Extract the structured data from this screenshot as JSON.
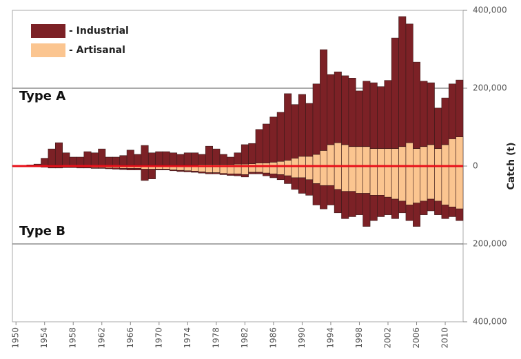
{
  "chart_data": {
    "type": "diverging_stacked_bar",
    "y_axis_label": "Catch (t)",
    "annotations": [
      "Type A",
      "Type B"
    ],
    "x": [
      1950,
      1951,
      1952,
      1953,
      1954,
      1955,
      1956,
      1957,
      1958,
      1959,
      1960,
      1961,
      1962,
      1963,
      1964,
      1965,
      1966,
      1967,
      1968,
      1969,
      1970,
      1971,
      1972,
      1973,
      1974,
      1975,
      1976,
      1977,
      1978,
      1979,
      1980,
      1981,
      1982,
      1983,
      1984,
      1985,
      1986,
      1987,
      1988,
      1989,
      1990,
      1991,
      1992,
      1993,
      1994,
      1995,
      1996,
      1997,
      1998,
      1999,
      2000,
      2001,
      2002,
      2003,
      2004,
      2005,
      2006,
      2007,
      2008,
      2009,
      2010,
      2011,
      2012
    ],
    "xlim": [
      1949.5,
      2012.5
    ],
    "xticks": [
      1950,
      1954,
      1958,
      1962,
      1966,
      1970,
      1974,
      1978,
      1982,
      1986,
      1990,
      1994,
      1998,
      2002,
      2006,
      2010
    ],
    "ylim": [
      -400000,
      400000
    ],
    "yticks": [
      {
        "value": 400000,
        "label": "400,000"
      },
      {
        "value": 200000,
        "label": "200,000"
      },
      0,
      {
        "value": -200000,
        "label": "200,000"
      },
      {
        "value": -400000,
        "label": "400,000"
      }
    ],
    "grid": true,
    "zero_line_color": "#e8101a",
    "negative_tick_color": "#e8101a",
    "legend_position": "top-left",
    "series": [
      {
        "name": "- Industrial",
        "color": "#7c2126",
        "values": [
          2000,
          2000,
          3000,
          4000,
          18000,
          41000,
          57000,
          32000,
          21000,
          21000,
          35000,
          32000,
          42000,
          21000,
          21000,
          24000,
          38000,
          27000,
          50000,
          31000,
          34000,
          34000,
          31000,
          27000,
          31000,
          31000,
          26000,
          47000,
          40000,
          26000,
          19000,
          29000,
          50000,
          52000,
          86000,
          100000,
          116000,
          126000,
          171000,
          138000,
          159000,
          136000,
          181000,
          259000,
          180000,
          182000,
          177000,
          176000,
          143000,
          168000,
          169000,
          159000,
          175000,
          284000,
          334000,
          305000,
          222000,
          168000,
          159000,
          104000,
          120000,
          141000,
          146000
        ],
        "values_type_b": [
          0,
          0,
          0,
          -1000,
          -1000,
          -2000,
          -2000,
          -1000,
          -1000,
          -2000,
          -2000,
          -2000,
          -2000,
          -2000,
          -3000,
          -3000,
          -4000,
          -4000,
          -29000,
          -25000,
          -2000,
          -2000,
          -2000,
          -3000,
          -3000,
          -3000,
          -3000,
          -3000,
          -3000,
          -3000,
          -4000,
          -5000,
          -6000,
          -4000,
          -4000,
          -7000,
          -10000,
          -13000,
          -20000,
          -30000,
          -40000,
          -40000,
          -55000,
          -60000,
          -50000,
          -60000,
          -70000,
          -65000,
          -55000,
          -85000,
          -65000,
          -55000,
          -45000,
          -50000,
          -30000,
          -40000,
          -60000,
          -35000,
          -30000,
          -35000,
          -35000,
          -25000,
          -30000
        ]
      },
      {
        "name": "- Artisanal",
        "color": "#fbc590",
        "values": [
          0,
          0,
          0,
          1000,
          2000,
          3000,
          3000,
          2000,
          2000,
          2000,
          2000,
          2000,
          2000,
          2000,
          2000,
          3000,
          3000,
          3000,
          3000,
          3000,
          3000,
          3000,
          3000,
          3000,
          3000,
          3000,
          4000,
          4000,
          4000,
          4000,
          4000,
          5000,
          5000,
          6000,
          8000,
          8000,
          10000,
          12000,
          15000,
          20000,
          25000,
          25000,
          30000,
          40000,
          55000,
          60000,
          55000,
          50000,
          50000,
          50000,
          45000,
          45000,
          45000,
          45000,
          50000,
          60000,
          45000,
          50000,
          55000,
          45000,
          55000,
          70000,
          75000
        ],
        "values_type_b": [
          -1000,
          -1000,
          -1000,
          -1000,
          -2000,
          -3000,
          -3000,
          -3000,
          -3000,
          -3000,
          -3000,
          -4000,
          -4000,
          -5000,
          -5000,
          -6000,
          -6000,
          -6000,
          -8000,
          -8000,
          -8000,
          -8000,
          -10000,
          -11000,
          -12000,
          -13000,
          -15000,
          -17000,
          -17000,
          -19000,
          -20000,
          -20000,
          -22000,
          -16000,
          -16000,
          -18000,
          -20000,
          -22000,
          -25000,
          -30000,
          -30000,
          -35000,
          -45000,
          -50000,
          -50000,
          -60000,
          -65000,
          -65000,
          -70000,
          -70000,
          -75000,
          -75000,
          -80000,
          -85000,
          -90000,
          -100000,
          -95000,
          -90000,
          -85000,
          -90000,
          -100000,
          -105000,
          -110000
        ]
      }
    ]
  }
}
